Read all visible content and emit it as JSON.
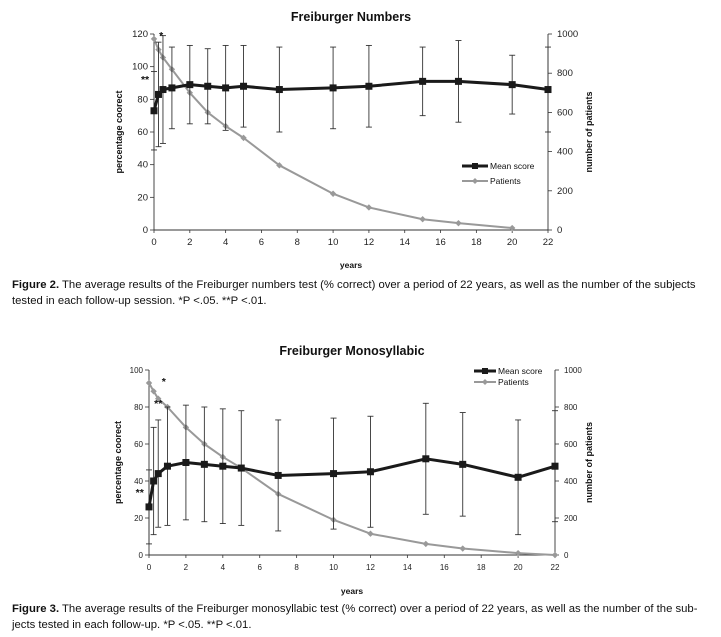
{
  "chart_data": [
    {
      "type": "line",
      "title": "Freiburger Numbers",
      "xlabel": "years",
      "ylabel": "percentage coorect",
      "y2label": "number of patients",
      "xlim": [
        0,
        22
      ],
      "ylim": [
        0,
        120
      ],
      "y2lim": [
        0,
        1000
      ],
      "x_ticks": [
        "0",
        "2",
        "4",
        "6",
        "8",
        "10",
        "12",
        "14",
        "16",
        "18",
        "20",
        "22"
      ],
      "y_ticks": [
        "0",
        "20",
        "40",
        "60",
        "80",
        "100",
        "120"
      ],
      "y2_ticks": [
        "0",
        "200",
        "400",
        "600",
        "800",
        "1000"
      ],
      "legend_position": "center-right",
      "series": [
        {
          "name": "Mean score",
          "axis": "left",
          "color": "#1a1a1a",
          "marker": "square",
          "x": [
            0,
            0.25,
            0.5,
            1,
            2,
            3,
            4,
            5,
            7,
            10,
            12,
            15,
            17,
            20,
            22
          ],
          "values": [
            73,
            83,
            86,
            87,
            89,
            88,
            87,
            88,
            86,
            87,
            88,
            91,
            91,
            89,
            86
          ],
          "error": [
            24,
            32,
            33,
            25,
            24,
            23,
            26,
            25,
            26,
            25,
            25,
            21,
            25,
            18,
            26
          ]
        },
        {
          "name": "Patients",
          "axis": "right",
          "color": "#999999",
          "marker": "diamond",
          "x": [
            0,
            0.25,
            0.5,
            1,
            2,
            3,
            4,
            5,
            7,
            10,
            12,
            15,
            17,
            20
          ],
          "values": [
            975,
            920,
            880,
            820,
            700,
            600,
            530,
            470,
            330,
            185,
            115,
            55,
            35,
            10
          ]
        }
      ],
      "annotations": [
        {
          "text": "*",
          "x": 0.4,
          "y": 117
        },
        {
          "text": "**",
          "x": -0.5,
          "y": 90
        }
      ]
    },
    {
      "type": "line",
      "title": "Freiburger Monosyllabic",
      "xlabel": "years",
      "ylabel": "percentage coorect",
      "y2label": "number of patients",
      "xlim": [
        0,
        22
      ],
      "ylim": [
        0,
        100
      ],
      "y2lim": [
        0,
        1000
      ],
      "x_ticks": [
        "0",
        "2",
        "4",
        "6",
        "8",
        "10",
        "12",
        "14",
        "16",
        "18",
        "20",
        "22"
      ],
      "y_ticks": [
        "0",
        "20",
        "40",
        "60",
        "80",
        "100"
      ],
      "y2_ticks": [
        "0",
        "200",
        "400",
        "600",
        "800",
        "1000"
      ],
      "legend_position": "top-right",
      "series": [
        {
          "name": "Mean score",
          "axis": "left",
          "color": "#1a1a1a",
          "marker": "square",
          "x": [
            0,
            0.25,
            0.5,
            1,
            2,
            3,
            4,
            5,
            7,
            10,
            12,
            15,
            17,
            20,
            22
          ],
          "values": [
            26,
            40,
            44,
            48,
            50,
            49,
            48,
            47,
            43,
            44,
            45,
            52,
            49,
            42,
            48
          ],
          "error": [
            20,
            29,
            29,
            32,
            31,
            31,
            31,
            31,
            30,
            30,
            30,
            30,
            28,
            31,
            30
          ]
        },
        {
          "name": "Patients",
          "axis": "right",
          "color": "#999999",
          "marker": "diamond",
          "x": [
            0,
            0.25,
            0.5,
            1,
            2,
            3,
            4,
            5,
            7,
            10,
            12,
            15,
            17,
            20,
            22
          ],
          "values": [
            930,
            885,
            845,
            800,
            690,
            600,
            530,
            470,
            330,
            190,
            115,
            60,
            35,
            10,
            0
          ]
        }
      ],
      "annotations": [
        {
          "text": "*",
          "x": 0.8,
          "y": 92
        },
        {
          "text": "**",
          "x": 0.5,
          "y": 80
        },
        {
          "text": "**",
          "x": -0.5,
          "y": 32
        }
      ]
    }
  ],
  "captions": {
    "fig2": {
      "label": "Figure 2.",
      "line1": "The average results of the Freiburger numbers test (% correct) over a period of 22 years, as well as the number of the subjects",
      "line2": "tested in each follow-up session. *P <.05. **P <.01."
    },
    "fig3": {
      "label": "Figure 3.",
      "line1": "The average results of the Freiburger monosyllabic test (% correct) over a period of 22 years, as well as the number of the sub-",
      "line2": "jects tested in each follow-up. *P <.05. **P <.01."
    }
  }
}
